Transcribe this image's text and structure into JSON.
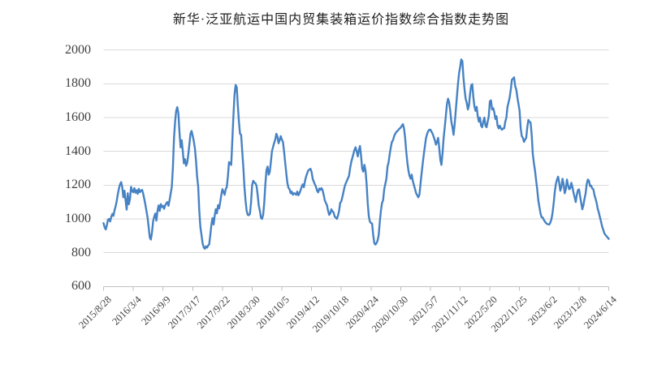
{
  "title": "新华·泛亚航运中国内贸集装箱运价指数综合指数走势图",
  "colors": {
    "line": "#4682C4",
    "grid": "#D9D9D9",
    "axis": "#BFBFBF",
    "tick": "#BFBFBF",
    "axis_label": "#3F3F3F",
    "title": "#1F1F1F",
    "background": "#FFFFFF"
  },
  "chart_data": {
    "type": "line",
    "title": "新华·泛亚航运中国内贸集装箱运价指数综合指数走势图",
    "xlabel": "",
    "ylabel": "",
    "ylim": [
      600,
      2000
    ],
    "y_ticks": [
      600,
      800,
      1000,
      1200,
      1400,
      1600,
      1800,
      2000
    ],
    "grid": "horizontal",
    "legend": "none",
    "x_frequency": "weekly",
    "points_per_tick_interval": 27,
    "x_tick_labels": [
      "2015/8/28",
      "2016/3/4",
      "2016/9/9",
      "2017/3/17",
      "2017/9/22",
      "2018/3/30",
      "2018/10/5",
      "2019/4/12",
      "2019/10/18",
      "2020/4/24",
      "2020/10/30",
      "2021/5/7",
      "2021/11/12",
      "2022/5/20",
      "2022/11/25",
      "2023/6/2",
      "2023/12/8",
      "2024/6/14"
    ],
    "series_name": "综合指数",
    "values": [
      975,
      950,
      938,
      962,
      995,
      1000,
      985,
      1012,
      1030,
      1018,
      1052,
      1075,
      1108,
      1148,
      1180,
      1205,
      1218,
      1188,
      1128,
      1167,
      1110,
      1055,
      1152,
      1087,
      1118,
      1190,
      1165,
      1158,
      1182,
      1155,
      1170,
      1148,
      1178,
      1158,
      1168,
      1172,
      1150,
      1118,
      1085,
      1046,
      1008,
      950,
      890,
      878,
      920,
      985,
      1012,
      1032,
      990,
      1047,
      1080,
      1047,
      1088,
      1070,
      1078,
      1060,
      1080,
      1092,
      1100,
      1078,
      1112,
      1150,
      1190,
      1302,
      1478,
      1574,
      1640,
      1662,
      1624,
      1512,
      1424,
      1466,
      1400,
      1329,
      1354,
      1315,
      1332,
      1382,
      1442,
      1505,
      1521,
      1492,
      1460,
      1418,
      1345,
      1250,
      1190,
      1046,
      950,
      905,
      855,
      832,
      823,
      838,
      830,
      842,
      850,
      905,
      967,
      1005,
      967,
      1020,
      1058,
      1033,
      1081,
      1062,
      1100,
      1143,
      1176,
      1160,
      1143,
      1176,
      1190,
      1254,
      1336,
      1330,
      1320,
      1466,
      1610,
      1735,
      1793,
      1780,
      1672,
      1576,
      1504,
      1498,
      1400,
      1306,
      1190,
      1110,
      1048,
      1024,
      1022,
      1030,
      1097,
      1200,
      1226,
      1215,
      1212,
      1195,
      1143,
      1081,
      1048,
      1008,
      1000,
      1024,
      1095,
      1205,
      1287,
      1310,
      1262,
      1278,
      1336,
      1400,
      1426,
      1450,
      1470,
      1504,
      1488,
      1448,
      1466,
      1490,
      1470,
      1456,
      1400,
      1336,
      1272,
      1214,
      1184,
      1176,
      1152,
      1162,
      1143,
      1152,
      1150,
      1143,
      1162,
      1140,
      1152,
      1170,
      1190,
      1205,
      1188,
      1224,
      1250,
      1270,
      1287,
      1292,
      1297,
      1278,
      1238,
      1220,
      1205,
      1190,
      1167,
      1157,
      1180,
      1172,
      1183,
      1170,
      1143,
      1110,
      1095,
      1081,
      1048,
      1024,
      1033,
      1057,
      1045,
      1038,
      1014,
      1008,
      1000,
      1020,
      1048,
      1095,
      1104,
      1130,
      1160,
      1190,
      1210,
      1224,
      1240,
      1254,
      1300,
      1336,
      1360,
      1384,
      1410,
      1424,
      1400,
      1370,
      1408,
      1432,
      1370,
      1297,
      1280,
      1320,
      1287,
      1208,
      1095,
      1016,
      984,
      976,
      972,
      905,
      857,
      848,
      857,
      872,
      905,
      984,
      1048,
      1095,
      1110,
      1176,
      1207,
      1238,
      1310,
      1336,
      1384,
      1424,
      1456,
      1466,
      1490,
      1504,
      1515,
      1520,
      1528,
      1536,
      1540,
      1552,
      1561,
      1536,
      1480,
      1400,
      1336,
      1287,
      1255,
      1238,
      1262,
      1224,
      1200,
      1176,
      1152,
      1140,
      1128,
      1143,
      1208,
      1272,
      1328,
      1384,
      1432,
      1480,
      1504,
      1520,
      1528,
      1528,
      1516,
      1504,
      1485,
      1466,
      1440,
      1456,
      1480,
      1420,
      1350,
      1320,
      1390,
      1480,
      1543,
      1610,
      1680,
      1712,
      1690,
      1640,
      1576,
      1543,
      1498,
      1560,
      1640,
      1720,
      1798,
      1862,
      1900,
      1944,
      1934,
      1838,
      1766,
      1712,
      1687,
      1648,
      1672,
      1740,
      1790,
      1798,
      1720,
      1664,
      1640,
      1664,
      1608,
      1576,
      1600,
      1552,
      1543,
      1576,
      1600,
      1552,
      1543,
      1576,
      1608,
      1696,
      1702,
      1648,
      1656,
      1632,
      1592,
      1608,
      1552,
      1536,
      1552,
      1536,
      1528,
      1536,
      1536,
      1576,
      1600,
      1664,
      1690,
      1720,
      1766,
      1824,
      1830,
      1838,
      1786,
      1766,
      1720,
      1680,
      1640,
      1536,
      1490,
      1480,
      1456,
      1470,
      1480,
      1543,
      1586,
      1575,
      1570,
      1498,
      1384,
      1330,
      1287,
      1230,
      1176,
      1110,
      1071,
      1033,
      1010,
      1008,
      995,
      984,
      976,
      970,
      968,
      967,
      980,
      1000,
      1038,
      1095,
      1162,
      1207,
      1233,
      1250,
      1214,
      1167,
      1190,
      1238,
      1205,
      1152,
      1176,
      1233,
      1200,
      1176,
      1180,
      1214,
      1190,
      1155,
      1128,
      1100,
      1143,
      1170,
      1175,
      1133,
      1095,
      1057,
      1081,
      1120,
      1152,
      1207,
      1233,
      1226,
      1195,
      1197,
      1180,
      1176,
      1143,
      1120,
      1095,
      1060,
      1038,
      1010,
      984,
      955,
      936,
      915,
      905,
      898,
      890,
      882
    ]
  }
}
